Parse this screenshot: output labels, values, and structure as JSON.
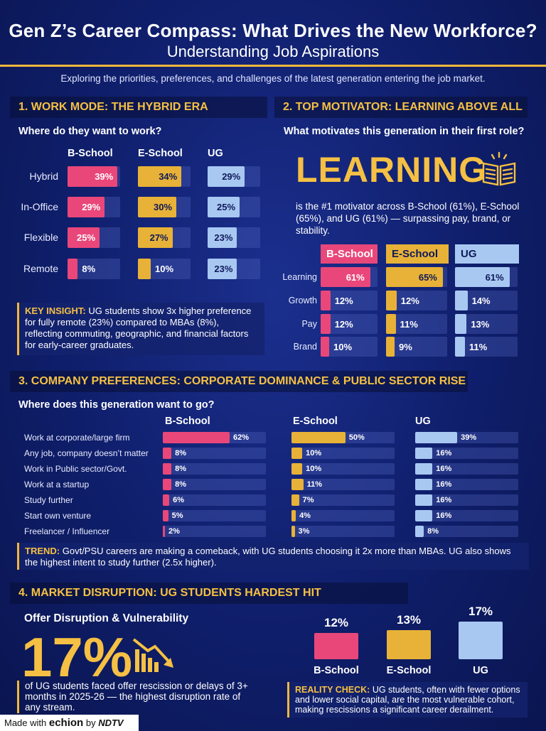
{
  "header": {
    "title": "Gen Z’s Career Compass: What Drives the New Workforce?",
    "subtitle": "Understanding Job Aspirations",
    "intro": "Exploring the priorities, preferences, and challenges of the latest generation entering the job market."
  },
  "colors": {
    "bschool": "#e9477a",
    "eschool": "#e7b237",
    "ug": "#a8c8f2",
    "accent": "#f5c043"
  },
  "section1": {
    "heading": "1. WORK MODE: THE HYBRID ERA",
    "question": "Where do they want to work?",
    "insight_label": "KEY INSIGHT:",
    "insight_text": "UG students show 3x higher preference for fully remote (23%) compared to MBAs (8%), reflecting commuting, geographic, and financial factors for early-career graduates."
  },
  "section2": {
    "heading": "2. TOP MOTIVATOR: LEARNING ABOVE ALL",
    "question": "What motivates this generation in their first role?",
    "big_word": "LEARNING",
    "icon": "open-book-icon",
    "desc": "is the #1 motivator across B-School (61%), E-School (65%), and UG (61%) — surpassing pay, brand, or stability."
  },
  "section3": {
    "heading": "3. COMPANY PREFERENCES: CORPORATE DOMINANCE & PUBLIC SECTOR RISE",
    "question": "Where does this generation want to go?",
    "trend_label": "TREND:",
    "trend_text": "Govt/PSU careers are making a comeback, with UG students choosing it 2x more than MBAs. UG also shows the highest intent to study further (2.5x higher)."
  },
  "section4": {
    "heading": "4. MARKET DISRUPTION: UG STUDENTS HARDEST HIT",
    "subhead": "Offer Disruption & Vulnerability",
    "big_stat": "17%",
    "icon": "declining-chart-icon",
    "desc": "of UG students faced offer rescission or delays of 3+ months in 2025-26 — the highest disruption rate of any stream.",
    "reality_label": "REALITY CHECK:",
    "reality_text": "UG students, often with fewer options and lower social capital, are the most vulnerable cohort, making rescissions a significant career derailment."
  },
  "footer": {
    "made_with": "Made with",
    "brand1": "echion",
    "by": "by",
    "brand2": "NDTV"
  },
  "chart_data": [
    {
      "type": "bar",
      "title": "Where do they want to work?",
      "categories": [
        "Hybrid",
        "In-Office",
        "Flexible",
        "Remote"
      ],
      "series": [
        {
          "name": "B-School",
          "values": [
            39,
            29,
            25,
            8
          ]
        },
        {
          "name": "E-School",
          "values": [
            34,
            30,
            27,
            10
          ]
        },
        {
          "name": "UG",
          "values": [
            29,
            25,
            23,
            23
          ]
        }
      ],
      "unit": "%"
    },
    {
      "type": "bar",
      "title": "What motivates this generation in their first role?",
      "categories": [
        "Learning",
        "Growth",
        "Pay",
        "Brand"
      ],
      "series": [
        {
          "name": "B-School",
          "values": [
            61,
            12,
            12,
            10
          ]
        },
        {
          "name": "E-School",
          "values": [
            65,
            12,
            11,
            9
          ]
        },
        {
          "name": "UG",
          "values": [
            61,
            14,
            13,
            11
          ]
        }
      ],
      "unit": "%"
    },
    {
      "type": "bar",
      "title": "Where does this generation want to go?",
      "categories": [
        "Work at corporate/large firm",
        "Any job, company doesn’t matter",
        "Work in Public sector/Govt.",
        "Work at a startup",
        "Study further",
        "Start own venture",
        "Freelancer / Influencer"
      ],
      "series": [
        {
          "name": "B-School",
          "values": [
            62,
            8,
            8,
            8,
            6,
            5,
            2
          ]
        },
        {
          "name": "E-School",
          "values": [
            50,
            10,
            10,
            11,
            7,
            4,
            3
          ]
        },
        {
          "name": "UG",
          "values": [
            39,
            16,
            16,
            16,
            16,
            16,
            8
          ]
        }
      ],
      "unit": "%"
    },
    {
      "type": "bar",
      "title": "Offer Disruption & Vulnerability",
      "categories": [
        "B-School",
        "E-School",
        "UG"
      ],
      "values": [
        12,
        13,
        17
      ],
      "unit": "%"
    }
  ]
}
